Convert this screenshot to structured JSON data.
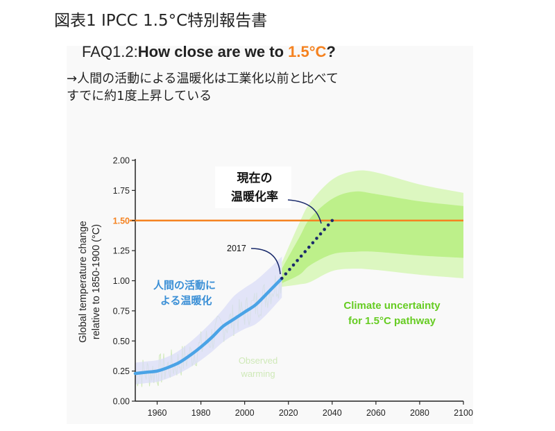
{
  "figure_title": "図表1 IPCC 1.5°C特別報告書",
  "faq": {
    "prefix": "FAQ1.2:",
    "question": "How close are we to ",
    "highlight": "1.5°C",
    "suffix": "?"
  },
  "note_lines": [
    "→人間の活動による温暖化は工業化以前と比べて",
    "すでに約1度上昇している"
  ],
  "colors": {
    "accent": "#f58220",
    "human_line": "#4aa3e6",
    "human_text": "#3a8fd6",
    "green_text": "#66cc22",
    "band_outer": "#dcf7c0",
    "band_inner": "#bdf08a",
    "uncert_purple": "#d9dcf7",
    "observed": "#cfe9b8"
  },
  "chart_data": {
    "type": "line",
    "xlabel": "",
    "ylabel_lines": [
      "Global temperature change",
      "relative to 1850-1900 (°C)"
    ],
    "xlim": [
      1950,
      2100
    ],
    "ylim": [
      0,
      2.0
    ],
    "x_ticks": [
      "1960",
      "1980",
      "2000",
      "2020",
      "2040",
      "2060",
      "2080",
      "2100"
    ],
    "y_ticks": [
      "0.00",
      "0.25",
      "0.50",
      "0.75",
      "1.00",
      "1.25",
      "1.50",
      "1.75",
      "2.00"
    ],
    "threshold": {
      "value": 1.5,
      "label": "1.50"
    },
    "human_warming": {
      "x": [
        1950,
        1955,
        1960,
        1965,
        1970,
        1975,
        1980,
        1985,
        1990,
        1995,
        2000,
        2005,
        2010,
        2017
      ],
      "y": [
        0.23,
        0.24,
        0.25,
        0.28,
        0.32,
        0.38,
        0.45,
        0.53,
        0.62,
        0.68,
        0.74,
        0.8,
        0.89,
        1.02
      ],
      "upper": [
        0.32,
        0.33,
        0.34,
        0.37,
        0.42,
        0.49,
        0.57,
        0.66,
        0.76,
        0.87,
        0.94,
        1.0,
        1.08,
        1.2
      ],
      "lower": [
        0.14,
        0.15,
        0.16,
        0.19,
        0.23,
        0.28,
        0.34,
        0.41,
        0.49,
        0.55,
        0.6,
        0.64,
        0.72,
        0.86
      ]
    },
    "projection_dotted": {
      "x": [
        2017,
        2040
      ],
      "y": [
        1.02,
        1.5
      ]
    },
    "climate_uncertainty": {
      "x": [
        2017,
        2025,
        2030,
        2040,
        2050,
        2060,
        2080,
        2100
      ],
      "outer_upper": [
        1.15,
        1.48,
        1.65,
        1.84,
        1.91,
        1.9,
        1.8,
        1.73
      ],
      "outer_lower": [
        0.95,
        0.97,
        0.99,
        1.08,
        1.1,
        1.09,
        1.05,
        1.02
      ],
      "inner_upper": [
        1.1,
        1.36,
        1.52,
        1.68,
        1.74,
        1.72,
        1.66,
        1.62
      ],
      "inner_lower": [
        0.98,
        1.05,
        1.13,
        1.22,
        1.24,
        1.24,
        1.21,
        1.19
      ]
    },
    "annotations": {
      "current_rate": [
        "現在の",
        "温暖化率"
      ],
      "year_2017": "2017",
      "human_activity": [
        "人間の活動に",
        "よる温暖化"
      ],
      "climate_uncertainty": [
        "Climate uncertainty",
        "for 1.5°C pathway"
      ],
      "observed": [
        "Observed",
        "warming"
      ]
    }
  }
}
